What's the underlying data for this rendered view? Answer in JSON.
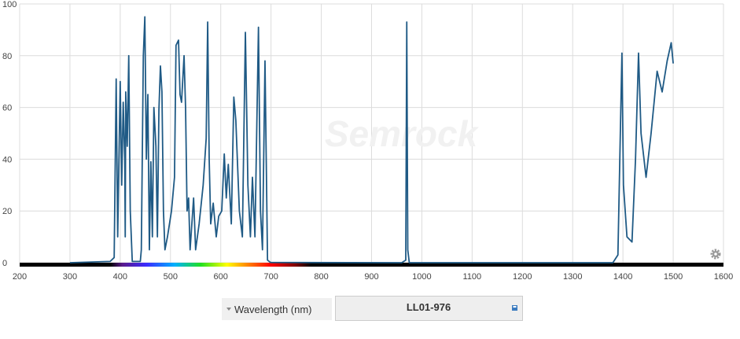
{
  "chart_data": {
    "type": "line",
    "watermark": "Semrock",
    "x_label": "Wavelength (nm)",
    "xlim": [
      200,
      1600
    ],
    "ylim": [
      0,
      100
    ],
    "xticks": [
      200,
      300,
      400,
      500,
      600,
      700,
      800,
      900,
      1000,
      1100,
      1200,
      1300,
      1400,
      1500,
      1600
    ],
    "yticks": [
      0,
      20,
      40,
      60,
      80,
      100
    ],
    "grid": true,
    "x": [
      300,
      380,
      388,
      392,
      395,
      400,
      403,
      406,
      409,
      410,
      411,
      414,
      417,
      420,
      424,
      440,
      442,
      446,
      449,
      452,
      455,
      458,
      461,
      464,
      467,
      471,
      474,
      477,
      480,
      483,
      486,
      489,
      494,
      502,
      508,
      511,
      516,
      519,
      522,
      527,
      530,
      533,
      536,
      539,
      546,
      550,
      557,
      565,
      571,
      574,
      577,
      580,
      585,
      591,
      596,
      602,
      607,
      611,
      615,
      621,
      626,
      630,
      637,
      643,
      649,
      654,
      659,
      663,
      668,
      675,
      679,
      683,
      688,
      693,
      699,
      960,
      968,
      970,
      972,
      975,
      1380,
      1390,
      1398,
      1401,
      1408,
      1418,
      1425,
      1431,
      1436,
      1446,
      1456,
      1468,
      1478,
      1488,
      1496,
      1500
    ],
    "series": [
      {
        "name": "LL01-976",
        "color": "#1f5a85",
        "values": [
          0,
          0.5,
          2,
          71,
          10,
          70,
          30,
          62,
          40,
          10,
          66,
          45,
          80,
          20,
          0.5,
          0.5,
          5,
          80,
          95,
          40,
          65,
          5,
          39,
          10,
          60,
          45,
          10,
          59,
          76,
          66,
          20,
          5,
          10,
          20,
          33,
          84,
          86,
          65,
          62,
          80,
          60,
          20,
          25,
          5,
          25,
          5,
          15,
          30,
          48,
          93,
          40,
          15,
          23,
          10,
          18,
          20,
          42,
          25,
          38,
          15,
          64,
          55,
          20,
          10,
          89,
          30,
          10,
          33,
          10,
          91,
          20,
          5,
          78,
          1,
          0.1,
          0,
          1,
          93,
          5,
          0,
          0,
          3,
          81,
          30,
          10,
          8,
          40,
          81,
          50,
          33,
          50,
          74,
          66,
          78,
          85,
          77
        ]
      }
    ]
  }
}
